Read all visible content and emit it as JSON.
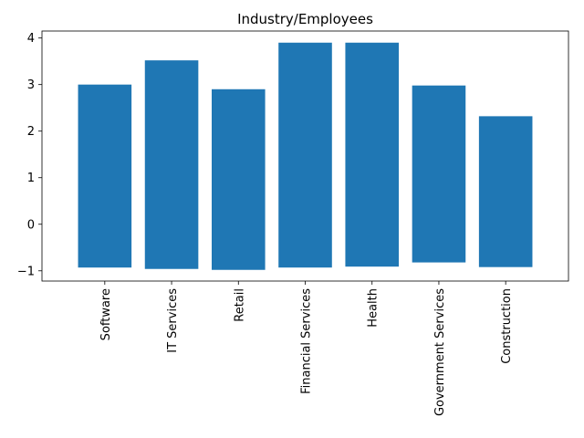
{
  "chart_data": {
    "type": "bar",
    "title": "Industry/Employees",
    "xlabel": "",
    "ylabel": "",
    "categories": [
      "Software",
      "IT Services",
      "Retail",
      "Financial Services",
      "Health",
      "Government Services",
      "Construction"
    ],
    "bottoms": [
      -0.93,
      -0.96,
      -0.98,
      -0.93,
      -0.91,
      -0.82,
      -0.92
    ],
    "tops": [
      3.0,
      3.52,
      2.9,
      3.9,
      3.9,
      2.98,
      2.32
    ],
    "ylim": [
      -1.22,
      4.15
    ],
    "yticks": [
      -1,
      0,
      1,
      2,
      3,
      4
    ],
    "ytick_labels": [
      "−1",
      "0",
      "1",
      "2",
      "3",
      "4"
    ],
    "grid": false,
    "bar_color": "#1f77b4"
  }
}
